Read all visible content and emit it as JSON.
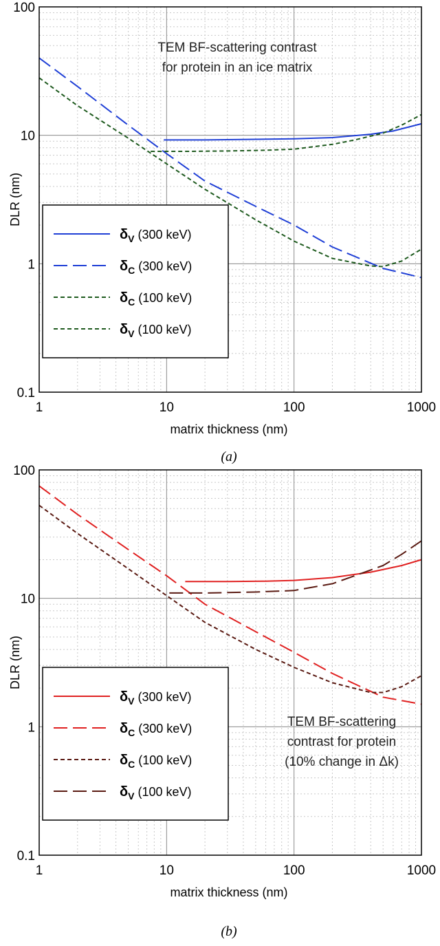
{
  "caption_prefix": "(",
  "caption_suffix": ")",
  "chart_data": [
    {
      "type": "line",
      "panel_label": "a",
      "xscale": "log",
      "yscale": "log",
      "xlim": [
        1,
        1000
      ],
      "ylim": [
        0.1,
        100
      ],
      "grid": true,
      "xlabel": "matrix thickness (nm)",
      "ylabel": "DLR (nm)",
      "x_ticks": [
        "1",
        "10",
        "100",
        "1000"
      ],
      "y_ticks": [
        "0.1",
        "1",
        "10",
        "100"
      ],
      "annotation": [
        "TEM BF-scattering contrast",
        "for protein in an ice matrix"
      ],
      "annotation_position": "top-center",
      "legend_position": "lower-left",
      "series": [
        {
          "name": "δV (300 keV)",
          "symbol": "δ",
          "subscript": "V",
          "suffix": "(300 keV)",
          "color": "#1f3fd6",
          "dash": "solid",
          "x": [
            9.5,
            20,
            50,
            100,
            200,
            400,
            600,
            1000
          ],
          "y": [
            9.2,
            9.2,
            9.3,
            9.4,
            9.6,
            10.2,
            10.8,
            12.3
          ]
        },
        {
          "name": "δC (300 keV)",
          "symbol": "δ",
          "subscript": "C",
          "suffix": "(300 keV)",
          "color": "#1f3fd6",
          "dash": "long",
          "x": [
            1,
            2,
            5,
            10,
            20,
            50,
            100,
            200,
            500,
            1000
          ],
          "y": [
            40,
            24,
            12,
            7.2,
            4.4,
            2.8,
            2.0,
            1.35,
            0.92,
            0.78
          ]
        },
        {
          "name": "δC (100 keV)",
          "symbol": "δ",
          "subscript": "C",
          "suffix": "(100 keV)",
          "color": "#1e5a1e",
          "dash": "short",
          "x": [
            1,
            2,
            5,
            10,
            20,
            50,
            100,
            200,
            400,
            500,
            700,
            1000
          ],
          "y": [
            28,
            17,
            9.5,
            6.0,
            3.8,
            2.2,
            1.5,
            1.1,
            0.96,
            0.95,
            1.05,
            1.3
          ]
        },
        {
          "name": "δV (100 keV)",
          "symbol": "δ",
          "subscript": "V",
          "suffix": "(100 keV)",
          "color": "#1e5a1e",
          "dash": "short",
          "x": [
            7.5,
            15,
            30,
            60,
            100,
            200,
            300,
            500,
            700,
            1000
          ],
          "y": [
            7.5,
            7.5,
            7.55,
            7.65,
            7.8,
            8.5,
            9.2,
            10.4,
            12,
            14.5
          ]
        }
      ]
    },
    {
      "type": "line",
      "panel_label": "b",
      "xscale": "log",
      "yscale": "log",
      "xlim": [
        1,
        1000
      ],
      "ylim": [
        0.1,
        100
      ],
      "grid": true,
      "xlabel": "matrix thickness (nm)",
      "ylabel": "DLR (nm)",
      "x_ticks": [
        "1",
        "10",
        "100",
        "1000"
      ],
      "y_ticks": [
        "0.1",
        "1",
        "10",
        "100"
      ],
      "annotation": [
        "TEM BF-scattering",
        "contrast for protein",
        "(10% change in Δk)"
      ],
      "annotation_position": "lower-right",
      "legend_position": "lower-left",
      "series": [
        {
          "name": "δV (300 keV)",
          "symbol": "δ",
          "subscript": "V",
          "suffix": "(300 keV)",
          "color": "#e02020",
          "dash": "solid",
          "x": [
            14,
            30,
            60,
            100,
            200,
            400,
            700,
            1000
          ],
          "y": [
            13.5,
            13.5,
            13.6,
            13.8,
            14.5,
            16,
            18,
            20
          ]
        },
        {
          "name": "δC (300 keV)",
          "symbol": "δ",
          "subscript": "C",
          "suffix": "(300 keV)",
          "color": "#e02020",
          "dash": "long",
          "x": [
            1,
            2,
            5,
            10,
            20,
            50,
            100,
            200,
            500,
            1000
          ],
          "y": [
            75,
            45,
            24,
            15,
            9,
            5.5,
            3.8,
            2.6,
            1.7,
            1.5
          ]
        },
        {
          "name": "δC (100 keV)",
          "symbol": "δ",
          "subscript": "C",
          "suffix": "(100 keV)",
          "color": "#5a1a12",
          "dash": "short",
          "x": [
            1,
            2,
            5,
            10,
            20,
            50,
            100,
            200,
            400,
            500,
            700,
            1000
          ],
          "y": [
            53,
            32,
            17,
            10.5,
            6.5,
            4.0,
            2.9,
            2.2,
            1.85,
            1.85,
            2.05,
            2.5
          ]
        },
        {
          "name": "δV (100 keV)",
          "symbol": "δ",
          "subscript": "V",
          "suffix": "(100 keV)",
          "color": "#5a1a12",
          "dash": "long",
          "x": [
            10.5,
            20,
            50,
            100,
            200,
            300,
            500,
            700,
            1000
          ],
          "y": [
            11,
            11,
            11.2,
            11.5,
            13,
            15,
            18,
            22,
            28
          ]
        }
      ]
    }
  ]
}
